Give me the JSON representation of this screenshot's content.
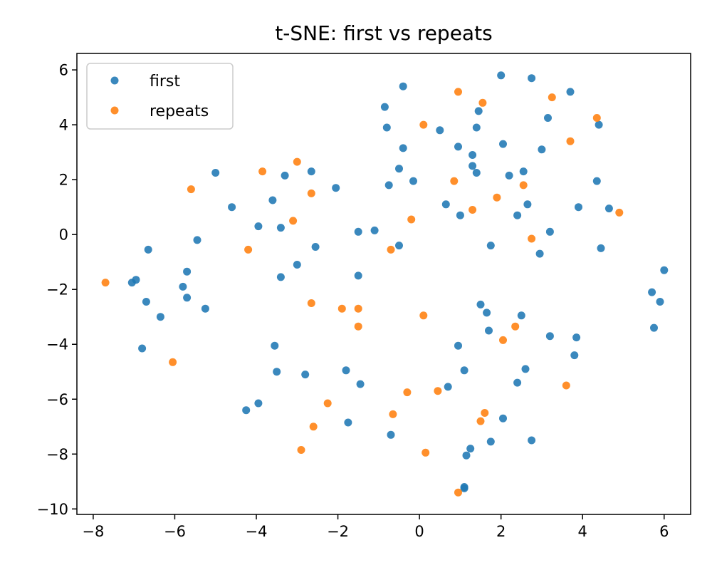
{
  "chart_data": {
    "type": "scatter",
    "title": "t-SNE: first vs repeats",
    "xlabel": "",
    "ylabel": "",
    "xlim": [
      -8.4,
      6.65
    ],
    "ylim": [
      -10.2,
      6.6
    ],
    "xticks": [
      -8,
      -6,
      -4,
      -2,
      0,
      2,
      4,
      6
    ],
    "yticks": [
      -10,
      -8,
      -6,
      -4,
      -2,
      0,
      2,
      4,
      6
    ],
    "xtick_labels": [
      "−8",
      "−6",
      "−4",
      "−2",
      "0",
      "2",
      "4",
      "6"
    ],
    "ytick_labels": [
      "−10",
      "−8",
      "−6",
      "−4",
      "−2",
      "0",
      "2",
      "4",
      "6"
    ],
    "grid": false,
    "legend_position": "top-left",
    "series": [
      {
        "name": "first",
        "color": "#1f77b4",
        "points": [
          [
            2.0,
            5.8
          ],
          [
            2.75,
            5.7
          ],
          [
            3.7,
            5.2
          ],
          [
            -0.4,
            5.4
          ],
          [
            -0.85,
            4.65
          ],
          [
            -0.8,
            3.9
          ],
          [
            1.45,
            4.5
          ],
          [
            1.4,
            3.9
          ],
          [
            0.5,
            3.8
          ],
          [
            3.15,
            4.25
          ],
          [
            4.4,
            4.0
          ],
          [
            -0.4,
            3.15
          ],
          [
            0.95,
            3.2
          ],
          [
            2.05,
            3.3
          ],
          [
            3.0,
            3.1
          ],
          [
            1.3,
            2.9
          ],
          [
            1.3,
            2.5
          ],
          [
            1.4,
            2.25
          ],
          [
            2.2,
            2.15
          ],
          [
            2.55,
            2.3
          ],
          [
            4.35,
            1.95
          ],
          [
            -0.5,
            2.4
          ],
          [
            -0.15,
            1.95
          ],
          [
            -0.75,
            1.8
          ],
          [
            0.65,
            1.1
          ],
          [
            1.0,
            0.7
          ],
          [
            2.4,
            0.7
          ],
          [
            2.65,
            1.1
          ],
          [
            3.9,
            1.0
          ],
          [
            4.65,
            0.95
          ],
          [
            3.2,
            0.1
          ],
          [
            1.75,
            -0.4
          ],
          [
            2.95,
            -0.7
          ],
          [
            4.45,
            -0.5
          ],
          [
            -1.5,
            0.1
          ],
          [
            -1.1,
            0.15
          ],
          [
            -0.5,
            -0.4
          ],
          [
            -1.5,
            -1.5
          ],
          [
            -5.0,
            2.25
          ],
          [
            -3.3,
            2.15
          ],
          [
            -2.65,
            2.3
          ],
          [
            -2.05,
            1.7
          ],
          [
            -4.6,
            1.0
          ],
          [
            -3.6,
            1.25
          ],
          [
            -3.95,
            0.3
          ],
          [
            -3.4,
            0.25
          ],
          [
            -5.45,
            -0.2
          ],
          [
            -6.65,
            -0.55
          ],
          [
            -2.55,
            -0.45
          ],
          [
            -3.0,
            -1.1
          ],
          [
            -3.4,
            -1.55
          ],
          [
            -5.7,
            -1.35
          ],
          [
            -7.05,
            -1.75
          ],
          [
            -6.95,
            -1.65
          ],
          [
            -5.8,
            -1.9
          ],
          [
            -5.7,
            -2.3
          ],
          [
            -6.7,
            -2.45
          ],
          [
            -5.25,
            -2.7
          ],
          [
            -6.35,
            -3.0
          ],
          [
            -6.8,
            -4.15
          ],
          [
            -3.55,
            -4.05
          ],
          [
            -3.5,
            -5.0
          ],
          [
            -2.8,
            -5.1
          ],
          [
            -1.8,
            -4.95
          ],
          [
            -1.45,
            -5.45
          ],
          [
            -4.25,
            -6.4
          ],
          [
            -3.95,
            -6.15
          ],
          [
            -1.75,
            -6.85
          ],
          [
            -0.7,
            -7.3
          ],
          [
            1.5,
            -2.55
          ],
          [
            1.65,
            -2.85
          ],
          [
            2.5,
            -2.95
          ],
          [
            1.7,
            -3.5
          ],
          [
            3.2,
            -3.7
          ],
          [
            3.85,
            -3.75
          ],
          [
            0.95,
            -4.05
          ],
          [
            3.8,
            -4.4
          ],
          [
            1.1,
            -4.95
          ],
          [
            2.6,
            -4.9
          ],
          [
            0.7,
            -5.55
          ],
          [
            2.4,
            -5.4
          ],
          [
            2.05,
            -6.7
          ],
          [
            1.25,
            -7.8
          ],
          [
            1.75,
            -7.55
          ],
          [
            2.75,
            -7.5
          ],
          [
            1.15,
            -8.05
          ],
          [
            1.1,
            -9.2
          ],
          [
            1.1,
            -9.25
          ],
          [
            5.7,
            -2.1
          ],
          [
            5.9,
            -2.45
          ],
          [
            6.0,
            -1.3
          ],
          [
            5.75,
            -3.4
          ]
        ]
      },
      {
        "name": "repeats",
        "color": "#ff7f0e",
        "points": [
          [
            0.95,
            5.2
          ],
          [
            1.55,
            4.8
          ],
          [
            3.25,
            5.0
          ],
          [
            4.35,
            4.25
          ],
          [
            0.1,
            4.0
          ],
          [
            3.7,
            3.4
          ],
          [
            -3.0,
            2.65
          ],
          [
            -3.85,
            2.3
          ],
          [
            0.85,
            1.95
          ],
          [
            -5.6,
            1.65
          ],
          [
            -2.65,
            1.5
          ],
          [
            2.55,
            1.8
          ],
          [
            1.9,
            1.35
          ],
          [
            1.3,
            0.9
          ],
          [
            4.9,
            0.8
          ],
          [
            -3.1,
            0.5
          ],
          [
            -0.2,
            0.55
          ],
          [
            2.75,
            -0.15
          ],
          [
            -4.2,
            -0.55
          ],
          [
            -0.7,
            -0.55
          ],
          [
            -7.7,
            -1.75
          ],
          [
            -2.65,
            -2.5
          ],
          [
            -1.9,
            -2.7
          ],
          [
            -1.5,
            -2.7
          ],
          [
            0.1,
            -2.95
          ],
          [
            -1.5,
            -3.35
          ],
          [
            2.35,
            -3.35
          ],
          [
            2.05,
            -3.85
          ],
          [
            -6.05,
            -4.65
          ],
          [
            3.6,
            -5.5
          ],
          [
            -0.3,
            -5.75
          ],
          [
            0.45,
            -5.7
          ],
          [
            -2.25,
            -6.15
          ],
          [
            -0.65,
            -6.55
          ],
          [
            1.6,
            -6.5
          ],
          [
            1.5,
            -6.8
          ],
          [
            -2.6,
            -7.0
          ],
          [
            -2.9,
            -7.85
          ],
          [
            0.15,
            -7.95
          ],
          [
            0.95,
            -9.4
          ]
        ]
      }
    ]
  }
}
